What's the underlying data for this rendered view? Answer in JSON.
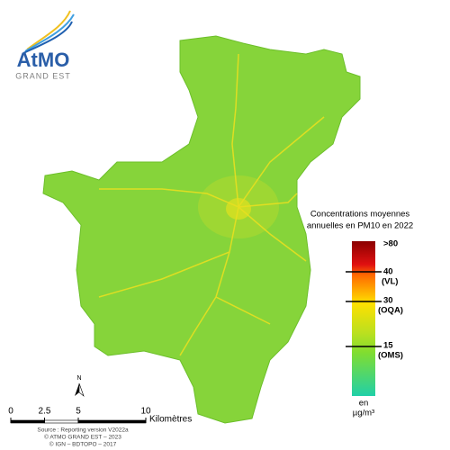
{
  "logo": {
    "name": "AtMO",
    "sub": "GRAND EST"
  },
  "legend": {
    "title": [
      "Concentrations moyennes",
      "annuelles en PM10 en 2022"
    ],
    "labels": [
      ">80",
      "40",
      "(VL)",
      "30",
      "(OQA)",
      "15",
      "(OMS)"
    ],
    "unit": [
      "en",
      "µg/m³"
    ]
  },
  "north": "N",
  "scale_bar": {
    "ticks": [
      0,
      2.5,
      5,
      10
    ],
    "unit": "Kilomètres"
  },
  "source": [
    "Source : Reporting version V2022a",
    "© ATMO GRAND EST – 2023",
    "© IGN – BDTOPO – 2017"
  ]
}
